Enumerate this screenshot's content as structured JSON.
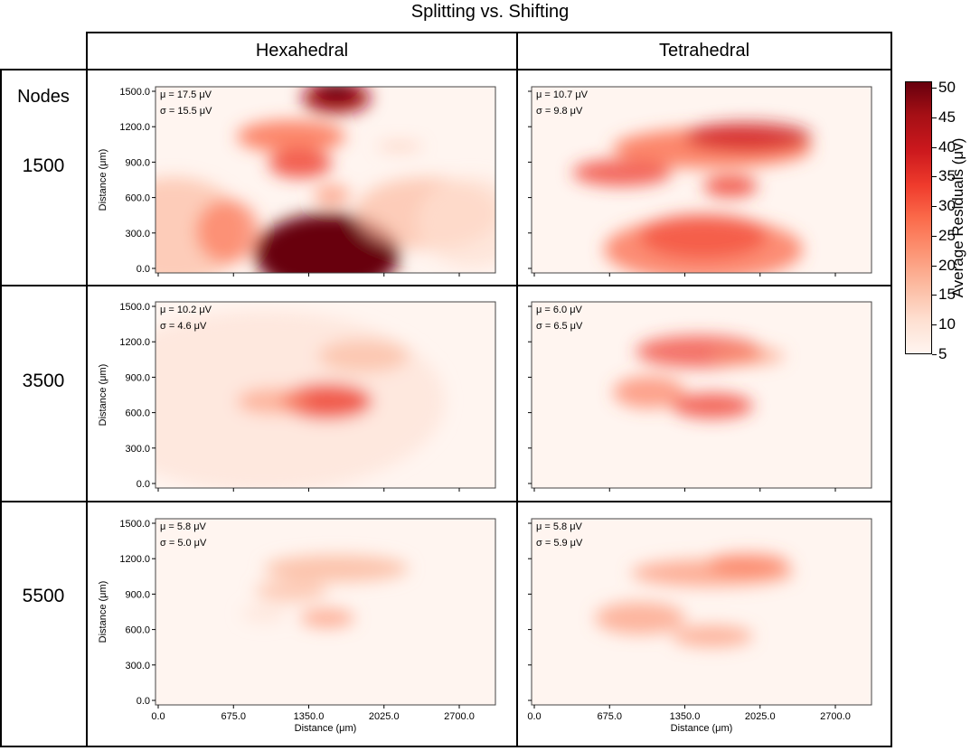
{
  "figure": {
    "title": "Splitting vs. Shifting",
    "columns": [
      "Hexahedral",
      "Tetrahedral"
    ],
    "row_header": "Nodes",
    "rows": [
      "1500",
      "3500",
      "5500"
    ]
  },
  "colorbar": {
    "label": "Average Residuals (μv)",
    "ticks": [
      "50",
      "45",
      "40",
      "35",
      "30",
      "25",
      "20",
      "15",
      "10",
      "5"
    ],
    "range": [
      5,
      50
    ],
    "colormap": "Reds"
  },
  "chart_data": [
    {
      "type": "heatmap",
      "row": "1500",
      "mesh": "Hexahedral",
      "mu": "μ = 17.5 μV",
      "sigma": "σ = 15.5 μV",
      "ylabel": "Distance (μm)",
      "xlabel": "",
      "yticks": [
        "1500.0",
        "1200.0",
        "900.0",
        "600.0",
        "300.0",
        "0.0"
      ],
      "xticks": [],
      "xlim": [
        0,
        3000
      ],
      "ylim": [
        0,
        1500
      ]
    },
    {
      "type": "heatmap",
      "row": "1500",
      "mesh": "Tetrahedral",
      "mu": "μ = 10.7 μV",
      "sigma": "σ = 9.8 μV",
      "ylabel": "",
      "xlabel": "",
      "yticks": [],
      "xticks": [],
      "xlim": [
        0,
        3000
      ],
      "ylim": [
        0,
        1500
      ]
    },
    {
      "type": "heatmap",
      "row": "3500",
      "mesh": "Hexahedral",
      "mu": "μ = 10.2 μV",
      "sigma": "σ = 4.6 μV",
      "ylabel": "Distance (μm)",
      "xlabel": "",
      "yticks": [
        "1500.0",
        "1200.0",
        "900.0",
        "600.0",
        "300.0",
        "0.0"
      ],
      "xticks": [],
      "xlim": [
        0,
        3000
      ],
      "ylim": [
        0,
        1500
      ]
    },
    {
      "type": "heatmap",
      "row": "3500",
      "mesh": "Tetrahedral",
      "mu": "μ = 6.0 μV",
      "sigma": "σ = 6.5 μV",
      "ylabel": "",
      "xlabel": "",
      "yticks": [],
      "xticks": [],
      "xlim": [
        0,
        3000
      ],
      "ylim": [
        0,
        1500
      ]
    },
    {
      "type": "heatmap",
      "row": "5500",
      "mesh": "Hexahedral",
      "mu": "μ = 5.8 μV",
      "sigma": "σ = 5.0 μV",
      "ylabel": "Distance (μm)",
      "xlabel": "Distance (μm)",
      "yticks": [
        "1500.0",
        "1200.0",
        "900.0",
        "600.0",
        "300.0",
        "0.0"
      ],
      "xticks": [
        "0.0",
        "675.0",
        "1350.0",
        "2025.0",
        "2700.0"
      ],
      "xlim": [
        0,
        3000
      ],
      "ylim": [
        0,
        1500
      ]
    },
    {
      "type": "heatmap",
      "row": "5500",
      "mesh": "Tetrahedral",
      "mu": "μ = 5.8 μV",
      "sigma": "σ = 5.9 μV",
      "ylabel": "",
      "xlabel": "Distance (μm)",
      "yticks": [],
      "xticks": [
        "0.0",
        "675.0",
        "1350.0",
        "2025.0",
        "2700.0"
      ],
      "xlim": [
        0,
        3000
      ],
      "ylim": [
        0,
        1500
      ]
    }
  ]
}
